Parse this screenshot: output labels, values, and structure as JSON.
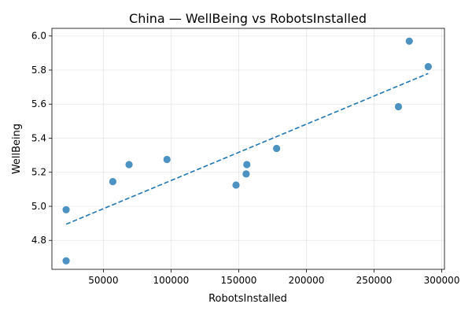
{
  "chart_data": {
    "type": "scatter",
    "title": "China — WellBeing vs RobotsInstalled",
    "xlabel": "RobotsInstalled",
    "ylabel": "WellBeing",
    "xlim": [
      12000,
      302000
    ],
    "ylim": [
      4.63,
      6.045
    ],
    "xticks": [
      50000,
      100000,
      150000,
      200000,
      250000,
      300000
    ],
    "xtick_labels": [
      "50000",
      "100000",
      "150000",
      "200000",
      "250000",
      "300000"
    ],
    "yticks": [
      4.8,
      5.0,
      5.2,
      5.4,
      5.6,
      5.8,
      6.0
    ],
    "ytick_labels": [
      "4.8",
      "5.0",
      "5.2",
      "5.4",
      "5.6",
      "5.8",
      "6.0"
    ],
    "grid": true,
    "legend": false,
    "color": "#1f77b4",
    "points": [
      {
        "x": 22500,
        "y": 4.68
      },
      {
        "x": 22500,
        "y": 4.98
      },
      {
        "x": 57000,
        "y": 5.145
      },
      {
        "x": 69000,
        "y": 5.245
      },
      {
        "x": 97000,
        "y": 5.275
      },
      {
        "x": 148000,
        "y": 5.125
      },
      {
        "x": 155500,
        "y": 5.19
      },
      {
        "x": 156000,
        "y": 5.245
      },
      {
        "x": 178000,
        "y": 5.34
      },
      {
        "x": 268000,
        "y": 5.585
      },
      {
        "x": 276000,
        "y": 5.97
      },
      {
        "x": 290000,
        "y": 5.82
      }
    ],
    "trendline": {
      "style": "dashed",
      "x": [
        22500,
        290000
      ],
      "y": [
        4.895,
        5.78
      ]
    }
  }
}
